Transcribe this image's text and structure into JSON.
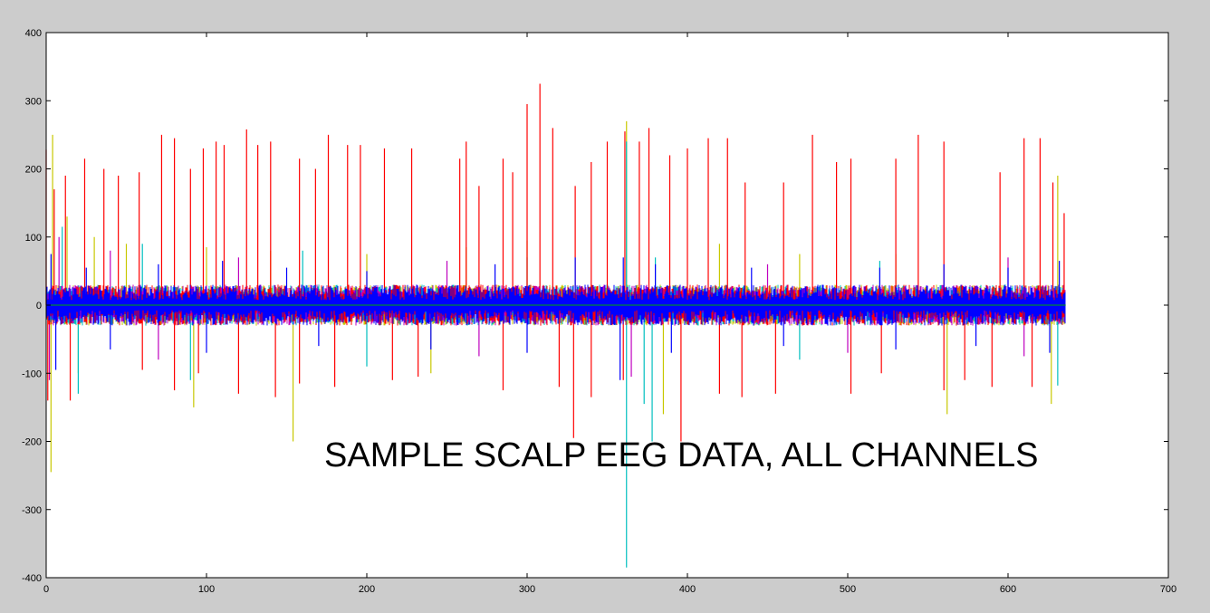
{
  "chart_data": {
    "type": "line",
    "title": "",
    "xlabel": "",
    "ylabel": "",
    "xlim": [
      0,
      700
    ],
    "ylim": [
      -400,
      400
    ],
    "xticks": [
      0,
      100,
      200,
      300,
      400,
      500,
      600,
      700
    ],
    "yticks": [
      -400,
      -300,
      -200,
      -100,
      0,
      100,
      200,
      300,
      400
    ],
    "xtick_labels": [
      "0",
      "100",
      "200",
      "300",
      "400",
      "500",
      "600",
      "700"
    ],
    "ytick_labels": [
      "-400",
      "-300",
      "-200",
      "-100",
      "0",
      "100",
      "200",
      "300",
      "400"
    ],
    "grid": false,
    "legend": "none",
    "annotation": "SAMPLE SCALP EEG DATA, ALL CHANNELS",
    "colors": {
      "background": "#cccccc",
      "axes_face": "#ffffff",
      "axes_edge": "#000000",
      "series": [
        "#ff0000",
        "#c8c800",
        "#00bfbf",
        "#bf00bf",
        "#0000ff"
      ],
      "zero_line": "#00aa00"
    },
    "data_x_range": [
      0,
      636
    ],
    "baseline_band": [
      -25,
      25
    ],
    "series": [
      {
        "color_index": 0,
        "peaks": [
          [
            0,
            228
          ],
          [
            5,
            170
          ],
          [
            12,
            190
          ],
          [
            24,
            215
          ],
          [
            36,
            200
          ],
          [
            45,
            190
          ],
          [
            58,
            195
          ],
          [
            72,
            250
          ],
          [
            80,
            245
          ],
          [
            90,
            200
          ],
          [
            98,
            230
          ],
          [
            106,
            240
          ],
          [
            111,
            235
          ],
          [
            125,
            258
          ],
          [
            132,
            235
          ],
          [
            140,
            240
          ],
          [
            158,
            215
          ],
          [
            168,
            200
          ],
          [
            176,
            250
          ],
          [
            188,
            235
          ],
          [
            196,
            235
          ],
          [
            211,
            230
          ],
          [
            228,
            230
          ],
          [
            258,
            215
          ],
          [
            262,
            240
          ],
          [
            270,
            175
          ],
          [
            285,
            215
          ],
          [
            291,
            195
          ],
          [
            300,
            295
          ],
          [
            308,
            325
          ],
          [
            316,
            260
          ],
          [
            330,
            175
          ],
          [
            340,
            210
          ],
          [
            350,
            240
          ],
          [
            361,
            255
          ],
          [
            370,
            240
          ],
          [
            376,
            260
          ],
          [
            389,
            220
          ],
          [
            400,
            230
          ],
          [
            413,
            245
          ],
          [
            425,
            245
          ],
          [
            436,
            180
          ],
          [
            460,
            180
          ],
          [
            478,
            250
          ],
          [
            493,
            210
          ],
          [
            502,
            215
          ],
          [
            530,
            215
          ],
          [
            544,
            250
          ],
          [
            560,
            240
          ],
          [
            595,
            195
          ],
          [
            610,
            245
          ],
          [
            620,
            245
          ],
          [
            628,
            180
          ],
          [
            635,
            135
          ]
        ],
        "troughs": [
          [
            1,
            -140
          ],
          [
            15,
            -140
          ],
          [
            60,
            -95
          ],
          [
            80,
            -125
          ],
          [
            95,
            -100
          ],
          [
            120,
            -130
          ],
          [
            143,
            -135
          ],
          [
            158,
            -115
          ],
          [
            180,
            -120
          ],
          [
            216,
            -110
          ],
          [
            232,
            -105
          ],
          [
            285,
            -125
          ],
          [
            320,
            -120
          ],
          [
            329,
            -195
          ],
          [
            340,
            -135
          ],
          [
            360,
            -110
          ],
          [
            396,
            -200
          ],
          [
            420,
            -130
          ],
          [
            434,
            -135
          ],
          [
            455,
            -130
          ],
          [
            502,
            -130
          ],
          [
            521,
            -100
          ],
          [
            560,
            -125
          ],
          [
            573,
            -110
          ],
          [
            590,
            -120
          ],
          [
            615,
            -120
          ]
        ]
      },
      {
        "color_index": 1,
        "peaks": [
          [
            4,
            250
          ],
          [
            13,
            130
          ],
          [
            30,
            100
          ],
          [
            50,
            90
          ],
          [
            100,
            85
          ],
          [
            140,
            80
          ],
          [
            200,
            75
          ],
          [
            262,
            85
          ],
          [
            300,
            95
          ],
          [
            362,
            270
          ],
          [
            420,
            90
          ],
          [
            470,
            75
          ],
          [
            530,
            75
          ],
          [
            631,
            190
          ]
        ],
        "troughs": [
          [
            3,
            -245
          ],
          [
            20,
            -100
          ],
          [
            92,
            -150
          ],
          [
            154,
            -200
          ],
          [
            240,
            -100
          ],
          [
            385,
            -160
          ],
          [
            562,
            -160
          ],
          [
            627,
            -145
          ]
        ]
      },
      {
        "color_index": 2,
        "peaks": [
          [
            10,
            115
          ],
          [
            60,
            90
          ],
          [
            160,
            80
          ],
          [
            300,
            70
          ],
          [
            362,
            240
          ],
          [
            380,
            70
          ],
          [
            520,
            65
          ]
        ],
        "troughs": [
          [
            20,
            -130
          ],
          [
            90,
            -110
          ],
          [
            200,
            -90
          ],
          [
            362,
            -385
          ],
          [
            373,
            -145
          ],
          [
            378,
            -200
          ],
          [
            470,
            -80
          ],
          [
            631,
            -118
          ]
        ]
      },
      {
        "color_index": 3,
        "peaks": [
          [
            8,
            100
          ],
          [
            40,
            80
          ],
          [
            120,
            70
          ],
          [
            250,
            65
          ],
          [
            450,
            60
          ],
          [
            600,
            70
          ]
        ],
        "troughs": [
          [
            2,
            -110
          ],
          [
            70,
            -80
          ],
          [
            270,
            -75
          ],
          [
            365,
            -105
          ],
          [
            500,
            -70
          ],
          [
            610,
            -75
          ]
        ]
      },
      {
        "color_index": 4,
        "peaks": [
          [
            3,
            75
          ],
          [
            25,
            55
          ],
          [
            70,
            60
          ],
          [
            110,
            65
          ],
          [
            150,
            55
          ],
          [
            200,
            50
          ],
          [
            280,
            60
          ],
          [
            330,
            70
          ],
          [
            360,
            70
          ],
          [
            380,
            60
          ],
          [
            440,
            55
          ],
          [
            520,
            55
          ],
          [
            560,
            60
          ],
          [
            600,
            55
          ],
          [
            632,
            65
          ]
        ],
        "troughs": [
          [
            6,
            -95
          ],
          [
            40,
            -65
          ],
          [
            100,
            -70
          ],
          [
            170,
            -60
          ],
          [
            240,
            -65
          ],
          [
            300,
            -70
          ],
          [
            358,
            -110
          ],
          [
            390,
            -70
          ],
          [
            460,
            -60
          ],
          [
            530,
            -65
          ],
          [
            580,
            -60
          ],
          [
            626,
            -70
          ]
        ]
      }
    ]
  }
}
